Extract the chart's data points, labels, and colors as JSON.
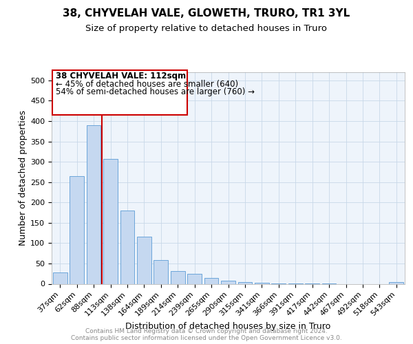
{
  "title": "38, CHYVELAH VALE, GLOWETH, TRURO, TR1 3YL",
  "subtitle": "Size of property relative to detached houses in Truro",
  "xlabel": "Distribution of detached houses by size in Truro",
  "ylabel": "Number of detached properties",
  "categories": [
    "37sqm",
    "62sqm",
    "88sqm",
    "113sqm",
    "138sqm",
    "164sqm",
    "189sqm",
    "214sqm",
    "239sqm",
    "265sqm",
    "290sqm",
    "315sqm",
    "341sqm",
    "366sqm",
    "391sqm",
    "417sqm",
    "442sqm",
    "467sqm",
    "492sqm",
    "518sqm",
    "543sqm"
  ],
  "values": [
    28,
    265,
    390,
    307,
    180,
    115,
    58,
    31,
    25,
    15,
    8,
    5,
    2,
    1,
    1,
    1,
    1,
    0,
    0,
    0,
    5
  ],
  "bar_color": "#c5d8f0",
  "bar_edge_color": "#5b9bd5",
  "grid_color": "#c8d8e8",
  "background_color": "#eef4fb",
  "property_label": "38 CHYVELAH VALE: 112sqm",
  "annotation_line1": "← 45% of detached houses are smaller (640)",
  "annotation_line2": "54% of semi-detached houses are larger (760) →",
  "annotation_box_color": "#cc0000",
  "red_line_index": 2.5,
  "footer_text": "Contains HM Land Registry data © Crown copyright and database right 2024.\nContains public sector information licensed under the Open Government Licence v3.0.",
  "ylim": [
    0,
    520
  ],
  "yticks": [
    0,
    50,
    100,
    150,
    200,
    250,
    300,
    350,
    400,
    450,
    500
  ],
  "title_fontsize": 11,
  "subtitle_fontsize": 9.5,
  "axis_label_fontsize": 9,
  "tick_fontsize": 8,
  "footer_fontsize": 6.5
}
